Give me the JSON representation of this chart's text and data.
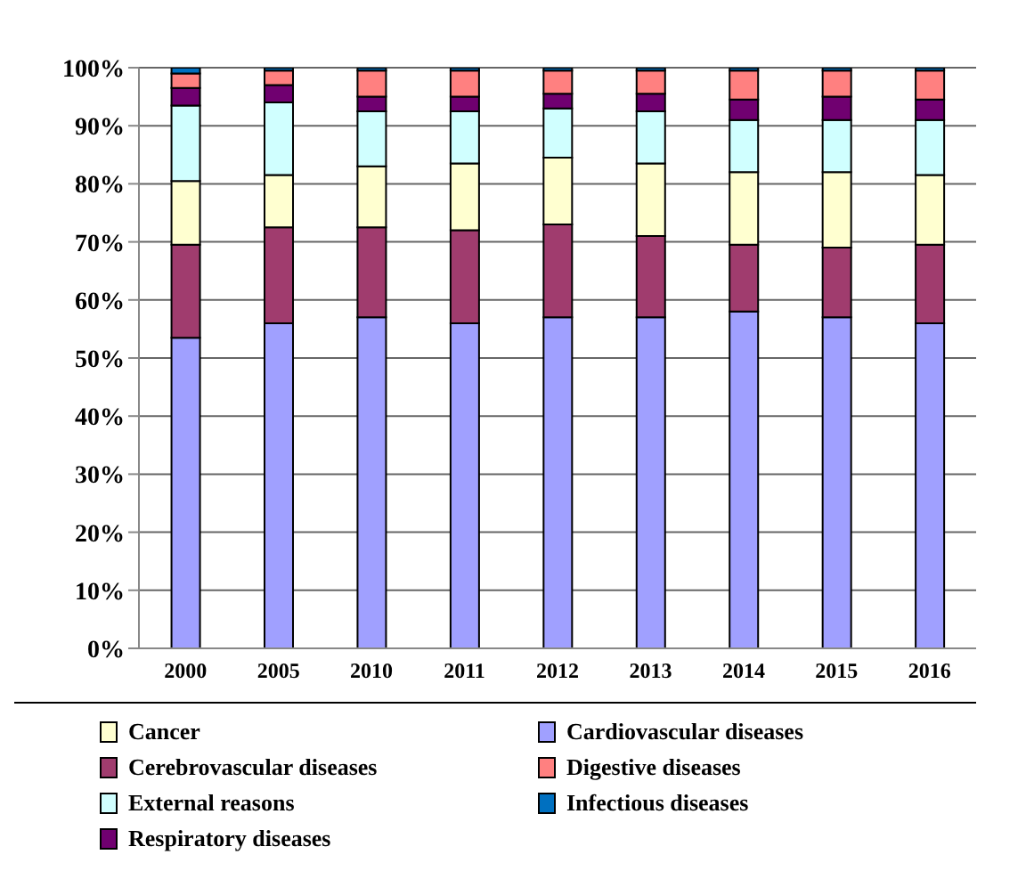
{
  "chart_data": {
    "type": "bar",
    "stacked": true,
    "categories": [
      "2000",
      "2005",
      "2010",
      "2011",
      "2012",
      "2013",
      "2014",
      "2015",
      "2016"
    ],
    "series": [
      {
        "name": "Cardiovascular diseases",
        "color": "#a0a0ff",
        "values": [
          53.5,
          56,
          57,
          56,
          57,
          57,
          58,
          57,
          56
        ]
      },
      {
        "name": "Cerebrovascular diseases",
        "color": "#a03c6e",
        "values": [
          16,
          16.5,
          15.5,
          16,
          16,
          14,
          11.5,
          12,
          13.5
        ]
      },
      {
        "name": "Cancer",
        "color": "#ffffd0",
        "values": [
          11,
          9,
          10.5,
          11.5,
          11.5,
          12.5,
          12.5,
          13,
          12
        ]
      },
      {
        "name": "External reasons",
        "color": "#d0ffff",
        "values": [
          13,
          12.5,
          9.5,
          9,
          8.5,
          9,
          9,
          9,
          9.5
        ]
      },
      {
        "name": "Respiratory diseases",
        "color": "#700070",
        "values": [
          3,
          3,
          2.5,
          2.5,
          2.5,
          3,
          3.5,
          4,
          3.5
        ]
      },
      {
        "name": "Digestive diseases",
        "color": "#ff8080",
        "values": [
          2.5,
          2.5,
          4.5,
          4.5,
          4,
          4,
          5,
          4.5,
          5
        ]
      },
      {
        "name": "Infectious diseases",
        "color": "#0070c0",
        "values": [
          1,
          0.5,
          0.5,
          0.5,
          0.5,
          0.5,
          0.5,
          0.5,
          0.5
        ]
      }
    ],
    "ylim": [
      0,
      100
    ],
    "yticks": [
      {
        "value": 0,
        "label": "0%"
      },
      {
        "value": 10,
        "label": "10%"
      },
      {
        "value": 20,
        "label": "20%"
      },
      {
        "value": 30,
        "label": "30%"
      },
      {
        "value": 40,
        "label": "40%"
      },
      {
        "value": 50,
        "label": "50%"
      },
      {
        "value": 60,
        "label": "60%"
      },
      {
        "value": 70,
        "label": "70%"
      },
      {
        "value": 80,
        "label": "80%"
      },
      {
        "value": 90,
        "label": "90%"
      },
      {
        "value": 100,
        "label": "100%"
      }
    ],
    "grid": "y",
    "legend": "bottom"
  }
}
